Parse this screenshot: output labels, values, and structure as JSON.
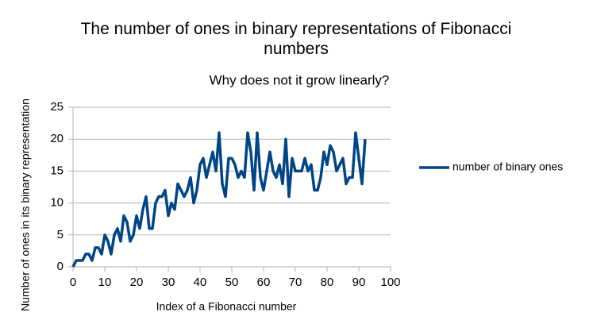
{
  "chart_data": {
    "type": "line",
    "title": "The number of ones in binary representations of Fibonacci numbers",
    "subtitle": "Why does not it grow linearly?",
    "x_label": "Index of a Fibonacci number",
    "y_label": "Number of ones in its binary representation",
    "x": [
      0,
      1,
      2,
      3,
      4,
      5,
      6,
      7,
      8,
      9,
      10,
      11,
      12,
      13,
      14,
      15,
      16,
      17,
      18,
      19,
      20,
      21,
      22,
      23,
      24,
      25,
      26,
      27,
      28,
      29,
      30,
      31,
      32,
      33,
      34,
      35,
      36,
      37,
      38,
      39,
      40,
      41,
      42,
      43,
      44,
      45,
      46,
      47,
      48,
      49,
      50,
      51,
      52,
      53,
      54,
      55,
      56,
      57,
      58,
      59,
      60,
      61,
      62,
      63,
      64,
      65,
      66,
      67,
      68,
      69,
      70,
      71,
      72,
      73,
      74,
      75,
      76,
      77,
      78,
      79,
      80,
      81,
      82,
      83,
      84,
      85,
      86,
      87,
      88,
      89,
      90,
      91,
      92
    ],
    "series": [
      {
        "name": "number of binary ones",
        "color": "#004586",
        "values": [
          0,
          1,
          1,
          1,
          2,
          2,
          1,
          3,
          3,
          2,
          5,
          4,
          2,
          5,
          6,
          4,
          8,
          7,
          4,
          5,
          8,
          6,
          9,
          11,
          6,
          6,
          10,
          11,
          11,
          12,
          8,
          10,
          9,
          13,
          12,
          11,
          12,
          14,
          10,
          12,
          16,
          17,
          14,
          16,
          18,
          15,
          21,
          13,
          11,
          17,
          17,
          16,
          14,
          15,
          14,
          21,
          18,
          12,
          21,
          14,
          12,
          15,
          18,
          15,
          14,
          16,
          13,
          20,
          11,
          17,
          15,
          15,
          15,
          17,
          15,
          16,
          12,
          12,
          14,
          18,
          16,
          19,
          18,
          15,
          16,
          17,
          13,
          14,
          14,
          21,
          17,
          13,
          20
        ]
      }
    ],
    "xlim": [
      0,
      100
    ],
    "xticks": [
      0,
      10,
      20,
      30,
      40,
      50,
      60,
      70,
      80,
      90,
      100
    ],
    "ylim": [
      0,
      25
    ],
    "yticks": [
      0,
      5,
      10,
      15,
      20,
      25
    ],
    "grid": true,
    "legend": "right"
  }
}
